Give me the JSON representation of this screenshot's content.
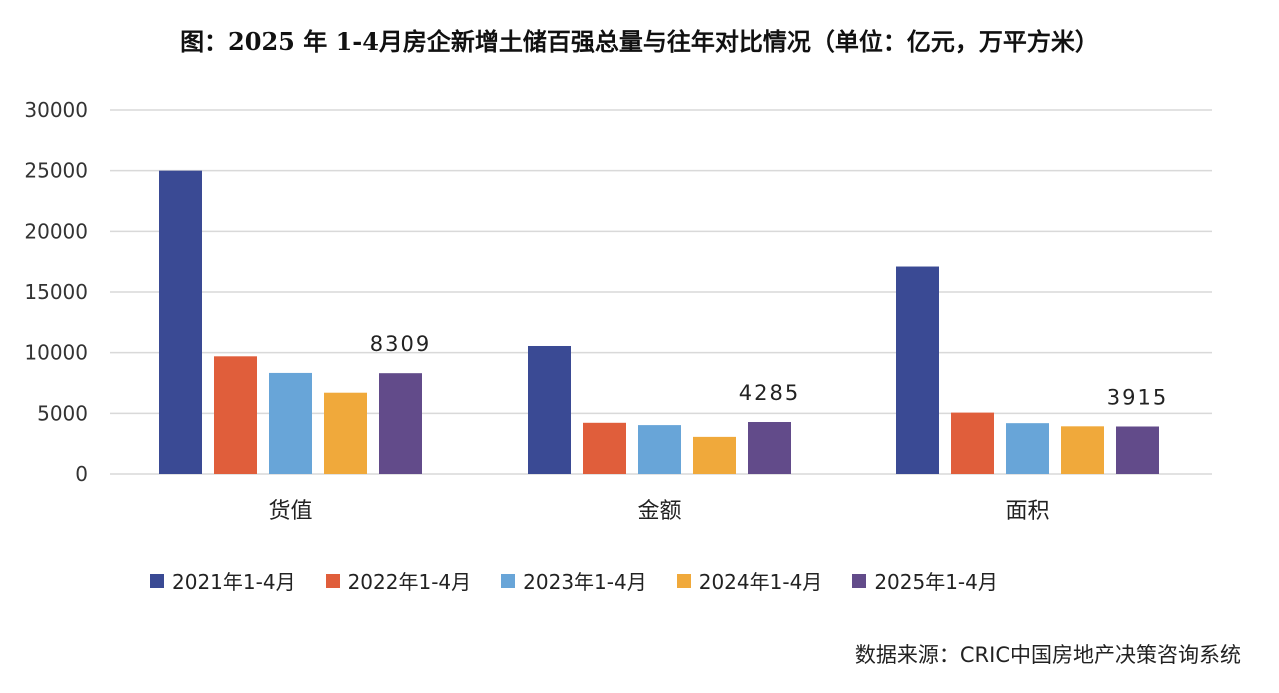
{
  "chart_data": {
    "type": "bar",
    "title": "图：2025 年 1-4月房企新增土储百强总量与往年对比情况（单位：亿元，万平方米）",
    "categories": [
      "货值",
      "金额",
      "面积"
    ],
    "ylim": [
      0,
      30000
    ],
    "yticks": [
      0,
      5000,
      10000,
      15000,
      20000,
      25000,
      30000
    ],
    "grid": true,
    "legend_position": "bottom",
    "series": [
      {
        "name": "2021年1-4月",
        "color": "#3A4A94",
        "values": [
          25000,
          10550,
          17100
        ]
      },
      {
        "name": "2022年1-4月",
        "color": "#E05E3B",
        "values": [
          9700,
          4220,
          5060
        ]
      },
      {
        "name": "2023年1-4月",
        "color": "#68A5D8",
        "values": [
          8330,
          4030,
          4190
        ]
      },
      {
        "name": "2024年1-4月",
        "color": "#F0A93B",
        "values": [
          6700,
          3060,
          3930
        ]
      },
      {
        "name": "2025年1-4月",
        "color": "#624B8A",
        "values": [
          8309,
          4285,
          3915
        ]
      }
    ],
    "data_labels": [
      "8309",
      "4285",
      "3915"
    ]
  },
  "source": "数据来源：CRIC中国房地产决策咨询系统"
}
